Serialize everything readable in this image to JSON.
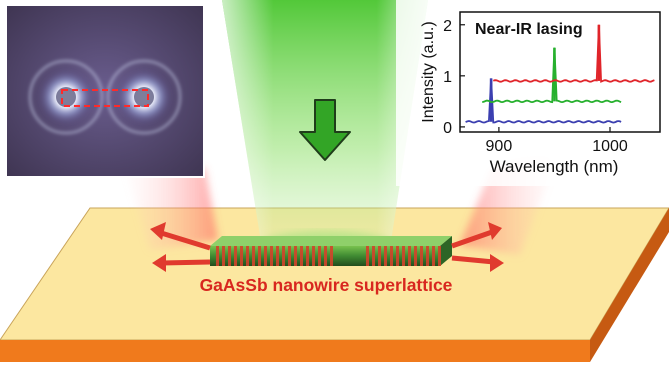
{
  "caption": {
    "label": "GaAsSb nanowire superlattice",
    "color": "#d8271f"
  },
  "colors": {
    "substrate_top": "#fce7a0",
    "substrate_side": "#f07a1c",
    "nanowire": "#3f8a32",
    "band": "#d2442a",
    "pump_beam": "#5fd03c",
    "emission": "#e03a2e",
    "arrow_pump": "#33a526"
  },
  "icons": {
    "pump_arrow": "arrow-down-icon",
    "emission_arrows": "arrow-outward-icon"
  },
  "inset_image": {
    "description_visible": false
  },
  "chart_data": {
    "type": "line",
    "title": "Near-IR lasing",
    "xlabel": "Wavelength (nm)",
    "ylabel": "Intensity (a.u.)",
    "xlim": [
      865,
      1045
    ],
    "ylim": [
      -0.1,
      2.25
    ],
    "x_ticks": [
      900,
      1000
    ],
    "y_ticks": [
      0,
      1,
      2
    ],
    "grid": false,
    "legend": "none",
    "series": [
      {
        "color": "#3b3fb0",
        "baseline": 0.1,
        "x_start": 870,
        "x_end": 1010,
        "peak_x": 893,
        "peak_y": 0.95
      },
      {
        "color": "#27b02e",
        "baseline": 0.5,
        "x_start": 885,
        "x_end": 1010,
        "peak_x": 950,
        "peak_y": 1.55
      },
      {
        "color": "#e0242a",
        "baseline": 0.9,
        "x_start": 895,
        "x_end": 1040,
        "peak_x": 990,
        "peak_y": 2.0
      }
    ]
  }
}
